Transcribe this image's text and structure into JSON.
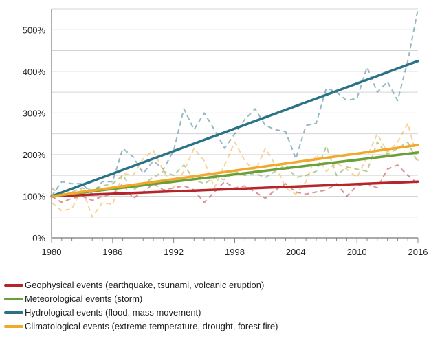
{
  "chart_data": {
    "type": "line",
    "title": "",
    "xlabel": "",
    "ylabel": "",
    "xlim": [
      1980,
      2016
    ],
    "ylim": [
      0,
      550
    ],
    "x_ticks": [
      1980,
      1986,
      1992,
      1998,
      2004,
      2010,
      2016
    ],
    "y_ticks": [
      0,
      100,
      200,
      300,
      400,
      500
    ],
    "y_tick_labels": [
      "0%",
      "100%",
      "200%",
      "300%",
      "400%",
      "500%"
    ],
    "grid": true,
    "legend_position": "bottom-left",
    "x": [
      1980,
      1981,
      1982,
      1983,
      1984,
      1985,
      1986,
      1987,
      1988,
      1989,
      1990,
      1991,
      1992,
      1993,
      1994,
      1995,
      1996,
      1997,
      1998,
      1999,
      2000,
      2001,
      2002,
      2003,
      2004,
      2005,
      2006,
      2007,
      2008,
      2009,
      2010,
      2011,
      2012,
      2013,
      2014,
      2015,
      2016
    ],
    "series": [
      {
        "name": "Geophysical events (earthquake, tsunami, volcanic eruption)",
        "color": "#b5262b",
        "trend": [
          100,
          135
        ],
        "values": [
          100,
          85,
          95,
          100,
          90,
          100,
          105,
          130,
          95,
          110,
          130,
          115,
          120,
          125,
          115,
          85,
          110,
          135,
          120,
          125,
          110,
          95,
          115,
          130,
          110,
          105,
          110,
          115,
          130,
          100,
          125,
          130,
          120,
          165,
          175,
          150,
          130
        ]
      },
      {
        "name": "Meteorological events (storm)",
        "color": "#6a9f3a",
        "trend": [
          100,
          205
        ],
        "values": [
          120,
          100,
          110,
          120,
          115,
          125,
          130,
          150,
          115,
          130,
          145,
          160,
          150,
          175,
          140,
          130,
          145,
          140,
          160,
          150,
          155,
          145,
          160,
          175,
          145,
          150,
          160,
          220,
          150,
          170,
          165,
          160,
          230,
          200,
          215,
          230,
          180
        ]
      },
      {
        "name": "Hydrological events (flood, mass movement)",
        "color": "#2a7387",
        "trend": [
          100,
          425
        ],
        "values": [
          100,
          135,
          130,
          130,
          105,
          135,
          135,
          215,
          195,
          155,
          185,
          165,
          210,
          310,
          260,
          300,
          260,
          215,
          250,
          285,
          310,
          270,
          260,
          255,
          190,
          270,
          275,
          360,
          350,
          330,
          335,
          410,
          350,
          375,
          330,
          425,
          550
        ]
      },
      {
        "name": "Climatological events (extreme temperature, drought, forest fire)",
        "color": "#f0a82d",
        "trend": [
          100,
          223
        ],
        "values": [
          85,
          65,
          70,
          120,
          50,
          85,
          80,
          155,
          150,
          190,
          210,
          160,
          120,
          160,
          215,
          185,
          120,
          175,
          230,
          185,
          160,
          215,
          175,
          120,
          105,
          135,
          200,
          160,
          180,
          165,
          145,
          195,
          250,
          205,
          230,
          275,
          185
        ]
      }
    ]
  }
}
